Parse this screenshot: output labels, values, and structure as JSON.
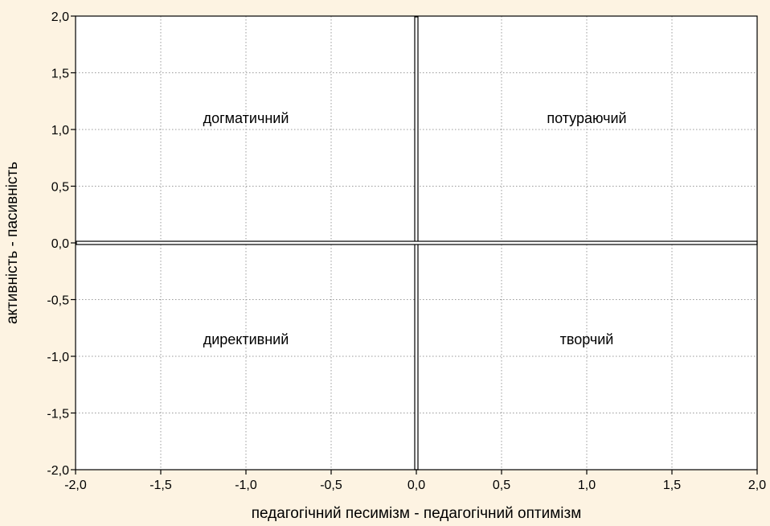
{
  "chart_data": {
    "type": "scatter",
    "xlabel": "педагогічний песимізм - педагогічний оптимізм",
    "ylabel": "активність - пасивність",
    "xlim": [
      -2.0,
      2.0
    ],
    "ylim": [
      -2.0,
      2.0
    ],
    "x_ticks": [
      -2.0,
      -1.5,
      -1.0,
      -0.5,
      0.0,
      0.5,
      1.0,
      1.5,
      2.0
    ],
    "y_ticks": [
      -2.0,
      -1.5,
      -1.0,
      -0.5,
      0.0,
      0.5,
      1.0,
      1.5,
      2.0
    ],
    "x_tick_labels": [
      "-2,0",
      "-1,5",
      "-1,0",
      "-0,5",
      "0,0",
      "0,5",
      "1,0",
      "1,5",
      "2,0"
    ],
    "y_tick_labels": [
      "-2,0",
      "-1,5",
      "-1,0",
      "-0,5",
      "0,0",
      "0,5",
      "1,0",
      "1,5",
      "2,0"
    ],
    "grid": true,
    "background_color": "#fdf3e2",
    "plot_background_color": "#ffffff",
    "reference_lines": [
      {
        "orientation": "vertical",
        "value": 0.0
      },
      {
        "orientation": "horizontal",
        "value": 0.0
      }
    ],
    "annotations": [
      {
        "text": "догматичний",
        "x": -1.0,
        "y": 1.1
      },
      {
        "text": "потураючий",
        "x": 1.0,
        "y": 1.1
      },
      {
        "text": "директивний",
        "x": -1.0,
        "y": -0.85
      },
      {
        "text": "творчий",
        "x": 1.0,
        "y": -0.85
      }
    ]
  }
}
